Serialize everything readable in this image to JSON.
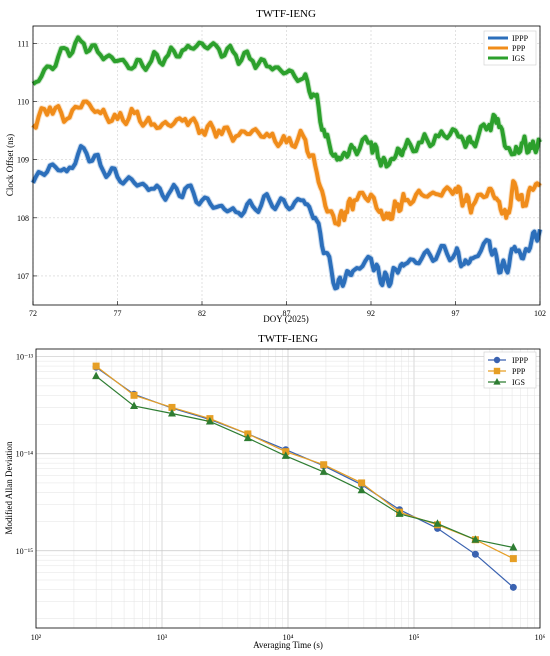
{
  "chart_data": [
    {
      "type": "line",
      "title": "TWTF-IENG",
      "xlabel": "DOY (2025)",
      "ylabel": "Clock Offset (ns)",
      "xlim": [
        72,
        102
      ],
      "ylim": [
        106.5,
        111.3
      ],
      "xticks": [
        72,
        77,
        82,
        87,
        92,
        97,
        102
      ],
      "yticks": [
        107,
        108,
        109,
        110,
        111
      ],
      "grid": true,
      "legend_position": "top-right",
      "series": [
        {
          "name": "IPPP",
          "color": "#2c6fbb",
          "x": [
            72,
            73,
            74,
            75,
            76,
            77,
            78,
            79,
            80,
            81,
            82,
            83,
            84,
            85,
            86,
            87,
            88,
            88.7,
            89.3,
            90,
            90.5,
            91,
            92,
            92.5,
            93,
            93.5,
            94,
            95,
            96,
            97,
            97.5,
            98,
            99,
            99.5,
            100,
            100.5,
            101,
            101.5,
            102
          ],
          "y": [
            108.6,
            108.9,
            108.8,
            109.2,
            108.9,
            108.7,
            108.6,
            108.5,
            108.4,
            108.5,
            108.3,
            108.2,
            108.1,
            108.2,
            108.3,
            108.2,
            108.3,
            108.0,
            107.4,
            106.8,
            107.0,
            107.1,
            107.3,
            107.0,
            106.9,
            107.1,
            107.2,
            107.3,
            107.4,
            107.4,
            107.2,
            107.3,
            107.6,
            107.2,
            107.1,
            107.5,
            107.3,
            107.6,
            107.8
          ]
        },
        {
          "name": "PPP",
          "color": "#f08c1a",
          "x": [
            72,
            73,
            74,
            75,
            76,
            77,
            78,
            79,
            80,
            81,
            82,
            83,
            84,
            85,
            86,
            87,
            88,
            88.7,
            89.3,
            90,
            90.5,
            91,
            92,
            92.5,
            93,
            93.5,
            94,
            95,
            96,
            97,
            97.5,
            98,
            99,
            99.5,
            100,
            100.5,
            101,
            101.5,
            102
          ],
          "y": [
            109.6,
            109.9,
            109.7,
            110.0,
            109.8,
            109.7,
            109.8,
            109.6,
            109.6,
            109.7,
            109.5,
            109.5,
            109.4,
            109.5,
            109.4,
            109.3,
            109.4,
            108.9,
            108.2,
            107.9,
            108.1,
            108.3,
            108.4,
            108.1,
            108.0,
            108.2,
            108.3,
            108.4,
            108.4,
            108.5,
            108.3,
            108.2,
            108.5,
            108.3,
            108.0,
            108.6,
            108.2,
            108.5,
            108.6
          ]
        },
        {
          "name": "IGS",
          "color": "#2ca02c",
          "x": [
            72,
            73,
            74,
            75,
            76,
            77,
            78,
            79,
            80,
            81,
            82,
            83,
            84,
            85,
            86,
            87,
            88,
            88.7,
            89.3,
            90,
            90.5,
            91,
            92,
            92.5,
            93,
            93.5,
            94,
            95,
            96,
            97,
            97.5,
            98,
            99,
            99.5,
            100,
            100.5,
            101,
            101.5,
            102
          ],
          "y": [
            110.3,
            110.6,
            110.9,
            111.0,
            110.8,
            110.7,
            110.6,
            110.7,
            110.8,
            110.9,
            111.0,
            110.9,
            110.8,
            110.7,
            110.6,
            110.5,
            110.4,
            110.1,
            109.4,
            109.0,
            109.1,
            109.2,
            109.3,
            109.0,
            108.9,
            109.1,
            109.2,
            109.3,
            109.4,
            109.5,
            109.3,
            109.3,
            109.6,
            109.7,
            109.2,
            109.1,
            109.3,
            109.2,
            109.3
          ]
        }
      ]
    },
    {
      "type": "line",
      "title": "TWTF-IENG",
      "xlabel": "Averaging Time (s)",
      "ylabel": "Modified Allan Deviation",
      "xscale": "log",
      "yscale": "log",
      "xlim": [
        100,
        1000000
      ],
      "ylim": [
        1.6e-16,
        1.2e-13
      ],
      "xtick_labels": [
        "10²",
        "10³",
        "10⁴",
        "10⁵",
        "10⁶"
      ],
      "ytick_labels": [
        "10⁻¹⁵",
        "10⁻¹⁴",
        "10⁻¹³"
      ],
      "grid": true,
      "legend_position": "top-right",
      "series": [
        {
          "name": "IPPP",
          "color": "#3a62b0",
          "marker": "circle",
          "x": [
            300,
            600,
            1200,
            2400,
            4800,
            9600,
            19200,
            38400,
            76800,
            153600,
            307200,
            614400
          ],
          "y": [
            7.8e-14,
            4.1e-14,
            2.95e-14,
            2.25e-14,
            1.6e-14,
            1.1e-14,
            7.5e-15,
            4.8e-15,
            2.65e-15,
            1.7e-15,
            9.2e-16,
            4.2e-16
          ]
        },
        {
          "name": "PPP",
          "color": "#e69f25",
          "marker": "square",
          "x": [
            300,
            600,
            1200,
            2400,
            4800,
            9600,
            19200,
            38400,
            76800,
            153600,
            307200,
            614400
          ],
          "y": [
            8e-14,
            4e-14,
            3e-14,
            2.3e-14,
            1.6e-14,
            1.05e-14,
            7.7e-15,
            5e-15,
            2.5e-15,
            1.85e-15,
            1.3e-15,
            8.3e-16
          ]
        },
        {
          "name": "IGS",
          "color": "#2e7d32",
          "marker": "triangle",
          "x": [
            300,
            600,
            1200,
            2400,
            4800,
            9600,
            19200,
            38400,
            76800,
            153600,
            307200,
            614400
          ],
          "y": [
            6.3e-14,
            3.1e-14,
            2.6e-14,
            2.15e-14,
            1.45e-14,
            9.5e-15,
            6.5e-15,
            4.2e-15,
            2.4e-15,
            1.9e-15,
            1.3e-15,
            1.08e-15
          ]
        }
      ]
    }
  ]
}
